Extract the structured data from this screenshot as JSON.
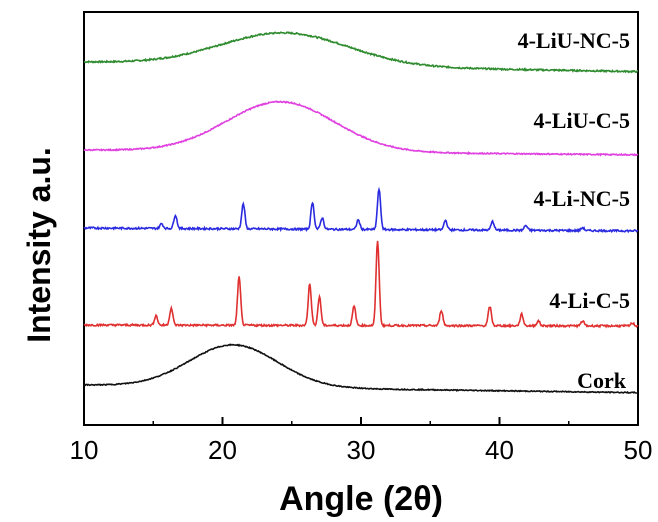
{
  "chart_data": {
    "type": "line",
    "xlabel": "Angle (2θ)",
    "ylabel": "Intensity a.u.",
    "xlim": [
      10,
      50
    ],
    "xticks": [
      10,
      20,
      30,
      40,
      50
    ],
    "grid": false,
    "legend": "inline labels",
    "series": [
      {
        "name": "4-LiU-NC-5",
        "color": "#2e8b2e",
        "offset": 4.0,
        "baseline": 0.0,
        "humps": [
          {
            "center": 24.5,
            "height": 0.34,
            "width": 6.5
          }
        ],
        "slope": -0.1,
        "noise": 0.008,
        "peaks": []
      },
      {
        "name": "4-LiU-C-5",
        "color": "#e040e0",
        "offset": 3.0,
        "baseline": 0.0,
        "humps": [
          {
            "center": 24.2,
            "height": 0.52,
            "width": 5.5
          }
        ],
        "slope": -0.05,
        "noise": 0.006,
        "peaks": []
      },
      {
        "name": "4-Li-NC-5",
        "color": "#2a2ae0",
        "offset": 2.0,
        "baseline": 0.0,
        "humps": [],
        "slope": -0.03,
        "noise": 0.01,
        "peaks": [
          {
            "x": 15.6,
            "h": 0.05
          },
          {
            "x": 16.6,
            "h": 0.14
          },
          {
            "x": 21.5,
            "h": 0.26
          },
          {
            "x": 26.5,
            "h": 0.28
          },
          {
            "x": 27.2,
            "h": 0.12
          },
          {
            "x": 29.8,
            "h": 0.1
          },
          {
            "x": 31.3,
            "h": 0.42
          },
          {
            "x": 36.1,
            "h": 0.1
          },
          {
            "x": 39.5,
            "h": 0.09
          },
          {
            "x": 41.9,
            "h": 0.05
          },
          {
            "x": 46.0,
            "h": 0.03
          }
        ]
      },
      {
        "name": "4-Li-C-5",
        "color": "#e03030",
        "offset": 1.0,
        "baseline": 0.0,
        "humps": [],
        "slope": -0.01,
        "noise": 0.01,
        "peaks": [
          {
            "x": 15.2,
            "h": 0.1
          },
          {
            "x": 16.3,
            "h": 0.18
          },
          {
            "x": 21.2,
            "h": 0.5
          },
          {
            "x": 26.3,
            "h": 0.44
          },
          {
            "x": 27.0,
            "h": 0.3
          },
          {
            "x": 29.5,
            "h": 0.2
          },
          {
            "x": 31.2,
            "h": 0.88
          },
          {
            "x": 35.8,
            "h": 0.16
          },
          {
            "x": 39.3,
            "h": 0.2
          },
          {
            "x": 41.6,
            "h": 0.12
          },
          {
            "x": 42.8,
            "h": 0.05
          },
          {
            "x": 46.0,
            "h": 0.05
          },
          {
            "x": 49.6,
            "h": 0.03
          }
        ]
      },
      {
        "name": "Cork",
        "color": "#111111",
        "offset": 0.0,
        "baseline": 0.0,
        "humps": [
          {
            "center": 20.8,
            "height": 0.44,
            "width": 4.5
          }
        ],
        "slope": -0.08,
        "noise": 0.005,
        "peaks": []
      }
    ]
  }
}
